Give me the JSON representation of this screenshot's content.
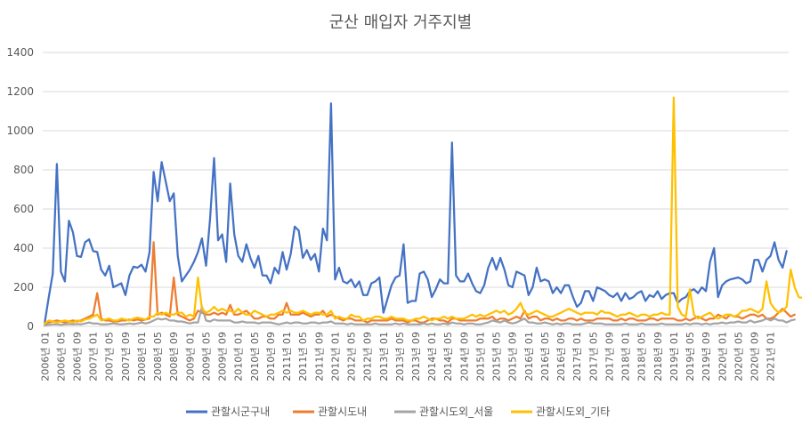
{
  "chart_data": {
    "type": "line",
    "title": "군산 매입자 거주지별",
    "xlabel": "",
    "ylabel": "",
    "ylim": [
      0,
      1400
    ],
    "yticks": [
      0,
      200,
      400,
      600,
      800,
      1000,
      1200,
      1400
    ],
    "grid": true,
    "legend_position": "bottom",
    "x_start": "2006-01",
    "x_end": "2021-03",
    "x_tick_labels": [
      "2006년 01",
      "2006년 05",
      "2006년 09",
      "2007년 01",
      "2007년 05",
      "2007년 09",
      "2008년 01",
      "2008년 05",
      "2008년 09",
      "2009년 01",
      "2009년 05",
      "2009년 09",
      "2010년 01",
      "2010년 05",
      "2010년 09",
      "2011년 01",
      "2011년 05",
      "2011년 09",
      "2012년 01",
      "2012년 05",
      "2012년 09",
      "2013년 01",
      "2013년 05",
      "2013년 09",
      "2014년 01",
      "2014년 05",
      "2014년 09",
      "2015년 01",
      "2015년 05",
      "2015년 09",
      "2016년 01",
      "2016년 05",
      "2016년 09",
      "2017년 01",
      "2017년 05",
      "2017년 09",
      "2018년 01",
      "2018년 05",
      "2018년 09",
      "2019년 01",
      "2019년 05",
      "2019년 09",
      "2020년 01",
      "2020년 05",
      "2020년 09",
      "2021년 01"
    ],
    "series": [
      {
        "name": "관할시군구내",
        "color": "#4472C4",
        "values": [
          20,
          150,
          270,
          830,
          280,
          230,
          540,
          480,
          360,
          355,
          430,
          445,
          385,
          380,
          290,
          260,
          310,
          200,
          210,
          220,
          160,
          260,
          305,
          300,
          315,
          280,
          380,
          790,
          640,
          840,
          740,
          640,
          680,
          360,
          230,
          260,
          290,
          330,
          380,
          450,
          310,
          550,
          860,
          440,
          470,
          330,
          730,
          470,
          360,
          330,
          420,
          350,
          300,
          360,
          260,
          260,
          220,
          300,
          270,
          380,
          290,
          370,
          510,
          490,
          350,
          390,
          340,
          370,
          280,
          500,
          440,
          1140,
          240,
          300,
          230,
          220,
          240,
          200,
          230,
          160,
          160,
          220,
          230,
          250,
          70,
          140,
          210,
          250,
          260,
          420,
          120,
          130,
          130,
          270,
          280,
          240,
          150,
          190,
          240,
          220,
          220,
          940,
          260,
          230,
          230,
          270,
          220,
          180,
          170,
          210,
          300,
          350,
          290,
          350,
          290,
          210,
          200,
          280,
          270,
          260,
          160,
          200,
          300,
          230,
          240,
          230,
          170,
          200,
          170,
          210,
          210,
          150,
          100,
          120,
          180,
          180,
          130,
          200,
          190,
          180,
          160,
          150,
          170,
          130,
          170,
          140,
          150,
          170,
          180,
          130,
          160,
          150,
          180,
          140,
          160,
          170,
          170,
          120,
          140,
          150,
          180,
          190,
          170,
          200,
          180,
          330,
          400,
          150,
          210,
          230,
          240,
          245,
          250,
          240,
          220,
          230,
          340,
          340,
          280,
          340,
          360,
          430,
          340,
          300,
          385
        ]
      },
      {
        "name": "관할시도내",
        "color": "#ED7D31",
        "values": [
          10,
          20,
          25,
          30,
          25,
          20,
          25,
          30,
          25,
          30,
          40,
          50,
          60,
          170,
          40,
          30,
          30,
          25,
          25,
          30,
          30,
          35,
          30,
          35,
          30,
          35,
          40,
          430,
          60,
          70,
          60,
          50,
          250,
          60,
          50,
          40,
          30,
          40,
          80,
          70,
          60,
          60,
          70,
          60,
          70,
          60,
          110,
          60,
          60,
          70,
          80,
          60,
          40,
          40,
          50,
          50,
          40,
          40,
          60,
          60,
          120,
          60,
          60,
          60,
          70,
          60,
          50,
          60,
          60,
          80,
          50,
          60,
          50,
          40,
          30,
          40,
          40,
          30,
          30,
          30,
          20,
          30,
          30,
          30,
          30,
          30,
          40,
          30,
          30,
          30,
          20,
          30,
          30,
          20,
          20,
          30,
          40,
          40,
          30,
          30,
          20,
          40,
          40,
          30,
          30,
          30,
          30,
          30,
          40,
          40,
          40,
          50,
          30,
          40,
          40,
          30,
          40,
          50,
          40,
          80,
          40,
          50,
          50,
          30,
          40,
          40,
          30,
          40,
          30,
          30,
          40,
          40,
          30,
          40,
          30,
          30,
          30,
          40,
          40,
          40,
          40,
          30,
          30,
          40,
          30,
          40,
          40,
          30,
          30,
          30,
          40,
          40,
          30,
          40,
          40,
          40,
          40,
          30,
          30,
          40,
          30,
          40,
          50,
          40,
          30,
          40,
          40,
          60,
          50,
          40,
          60,
          50,
          50,
          40,
          50,
          60,
          60,
          50,
          60,
          40,
          40,
          50,
          70,
          90,
          70,
          50,
          60
        ]
      },
      {
        "name": "관할시도외_서울",
        "color": "#A5A5A5",
        "values": [
          5,
          8,
          10,
          10,
          8,
          10,
          12,
          10,
          12,
          10,
          15,
          20,
          15,
          15,
          10,
          10,
          12,
          15,
          12,
          10,
          12,
          15,
          12,
          15,
          20,
          15,
          20,
          30,
          40,
          35,
          40,
          30,
          30,
          25,
          25,
          20,
          15,
          20,
          20,
          100,
          30,
          25,
          35,
          30,
          30,
          30,
          30,
          20,
          20,
          25,
          20,
          20,
          20,
          15,
          20,
          20,
          20,
          15,
          10,
          15,
          20,
          15,
          20,
          20,
          15,
          15,
          20,
          20,
          15,
          20,
          20,
          25,
          15,
          15,
          15,
          10,
          15,
          10,
          10,
          10,
          10,
          10,
          15,
          10,
          10,
          10,
          10,
          15,
          10,
          15,
          10,
          10,
          10,
          10,
          15,
          10,
          15,
          10,
          10,
          15,
          10,
          20,
          15,
          15,
          10,
          15,
          15,
          10,
          10,
          15,
          20,
          30,
          25,
          20,
          30,
          20,
          15,
          20,
          30,
          40,
          20,
          20,
          15,
          15,
          20,
          15,
          10,
          15,
          10,
          15,
          15,
          10,
          10,
          10,
          15,
          20,
          15,
          15,
          15,
          10,
          10,
          10,
          10,
          10,
          15,
          10,
          10,
          10,
          15,
          10,
          10,
          10,
          10,
          15,
          10,
          10,
          10,
          10,
          10,
          15,
          10,
          15,
          15,
          10,
          15,
          10,
          15,
          15,
          20,
          15,
          20,
          20,
          25,
          20,
          20,
          30,
          20,
          25,
          30,
          40,
          30,
          40,
          30,
          30,
          20,
          30,
          35
        ]
      },
      {
        "name": "관할시도외_기타",
        "color": "#FFC000",
        "values": [
          15,
          30,
          25,
          20,
          25,
          30,
          25,
          20,
          30,
          25,
          35,
          40,
          50,
          60,
          30,
          35,
          40,
          30,
          30,
          40,
          35,
          30,
          40,
          45,
          40,
          35,
          50,
          50,
          70,
          60,
          70,
          60,
          60,
          70,
          70,
          50,
          60,
          50,
          250,
          90,
          70,
          80,
          100,
          80,
          90,
          80,
          80,
          70,
          90,
          70,
          60,
          60,
          80,
          70,
          60,
          50,
          60,
          60,
          70,
          80,
          70,
          80,
          70,
          70,
          80,
          70,
          60,
          70,
          70,
          60,
          60,
          80,
          40,
          50,
          40,
          40,
          60,
          50,
          50,
          30,
          40,
          40,
          50,
          50,
          40,
          40,
          50,
          40,
          40,
          40,
          30,
          30,
          40,
          40,
          50,
          40,
          30,
          40,
          40,
          50,
          40,
          50,
          40,
          40,
          40,
          50,
          60,
          50,
          60,
          50,
          60,
          70,
          80,
          70,
          80,
          60,
          70,
          90,
          120,
          70,
          60,
          70,
          80,
          70,
          60,
          50,
          50,
          60,
          70,
          80,
          90,
          80,
          70,
          60,
          70,
          70,
          70,
          60,
          80,
          70,
          70,
          60,
          50,
          60,
          60,
          70,
          60,
          50,
          60,
          60,
          50,
          60,
          60,
          70,
          60,
          60,
          1170,
          100,
          60,
          50,
          190,
          60,
          40,
          50,
          60,
          70,
          50,
          40,
          50,
          60,
          60,
          50,
          60,
          80,
          80,
          90,
          80,
          70,
          90,
          230,
          120,
          90,
          70,
          80,
          100,
          290,
          200,
          150,
          145
        ]
      }
    ]
  }
}
